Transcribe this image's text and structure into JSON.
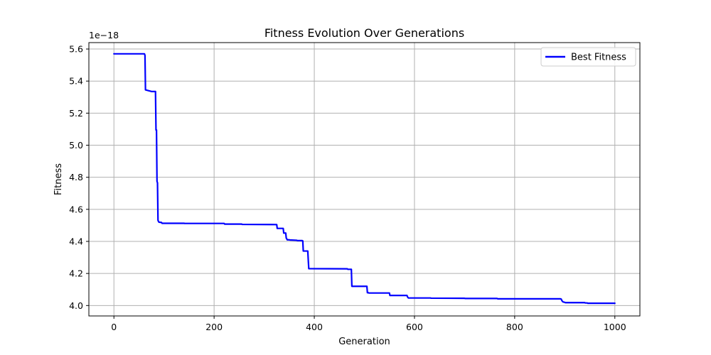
{
  "chart_data": {
    "type": "line",
    "title": "Fitness Evolution Over Generations",
    "xlabel": "Generation",
    "ylabel": "Fitness",
    "offset_label": "1e−18",
    "xlim": [
      -50,
      1050
    ],
    "ylim": [
      3.935,
      5.64
    ],
    "xticks": [
      0,
      200,
      400,
      600,
      800,
      1000
    ],
    "xtick_labels": [
      "0",
      "200",
      "400",
      "600",
      "800",
      "1000"
    ],
    "yticks": [
      4.0,
      4.2,
      4.4,
      4.6,
      4.8,
      5.0,
      5.2,
      5.4,
      5.6
    ],
    "ytick_labels": [
      "4.0",
      "4.2",
      "4.4",
      "4.6",
      "4.8",
      "5.0",
      "5.2",
      "5.4",
      "5.6"
    ],
    "grid": true,
    "legend": {
      "placement": "top-right"
    },
    "series": [
      {
        "name": "Best Fitness",
        "color": "#0000ff",
        "x": [
          0,
          61,
          62,
          63,
          75,
          76,
          83,
          84,
          85,
          86,
          87,
          88,
          89,
          90,
          95,
          96,
          140,
          141,
          220,
          221,
          255,
          256,
          325,
          326,
          338,
          339,
          343,
          344,
          345,
          346,
          350,
          351,
          365,
          366,
          376,
          377,
          378,
          379,
          387,
          388,
          389,
          390,
          466,
          467,
          474,
          475,
          505,
          506,
          508,
          509,
          550,
          551,
          585,
          586,
          587,
          588,
          632,
          633,
          700,
          701,
          765,
          766,
          890,
          891,
          893,
          894,
          896,
          897,
          900,
          901,
          940,
          941,
          945,
          946,
          1000
        ],
        "y": [
          5.57,
          5.57,
          5.56,
          5.345,
          5.335,
          5.335,
          5.335,
          5.095,
          5.095,
          4.775,
          4.765,
          4.532,
          4.524,
          4.52,
          4.518,
          4.513,
          4.513,
          4.512,
          4.512,
          4.508,
          4.508,
          4.506,
          4.505,
          4.481,
          4.481,
          4.452,
          4.452,
          4.421,
          4.416,
          4.41,
          4.41,
          4.409,
          4.407,
          4.405,
          4.405,
          4.403,
          4.34,
          4.34,
          4.34,
          4.282,
          4.23,
          4.23,
          4.229,
          4.226,
          4.226,
          4.12,
          4.12,
          4.08,
          4.08,
          4.078,
          4.078,
          4.063,
          4.063,
          4.055,
          4.05,
          4.047,
          4.047,
          4.046,
          4.045,
          4.044,
          4.044,
          4.042,
          4.042,
          4.042,
          4.04,
          4.032,
          4.024,
          4.022,
          4.02,
          4.018,
          4.018,
          4.016,
          4.016,
          4.014,
          4.014
        ]
      }
    ]
  }
}
